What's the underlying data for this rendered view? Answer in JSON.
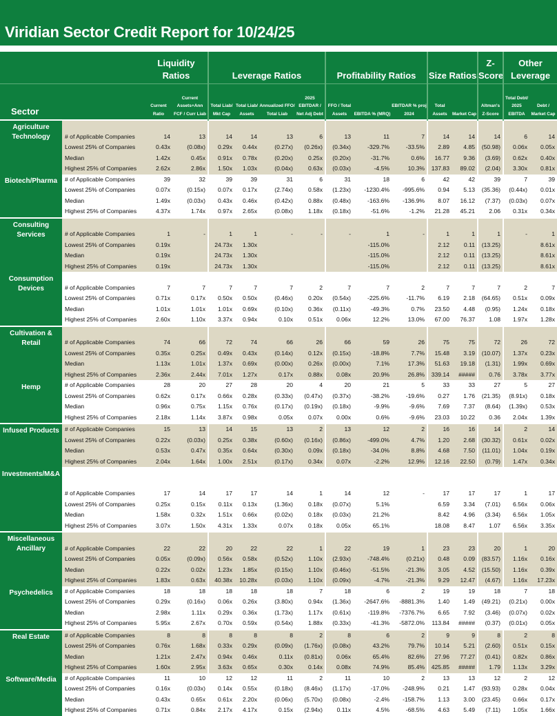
{
  "title": "Viridian Sector Credit Report for 10/24/25",
  "colors": {
    "header_green": "#0e7f3e",
    "band_beige": "#ddd8c4"
  },
  "header": {
    "sector_label": "Sector",
    "groups": [
      "Liquidity Ratios",
      "Leverage Ratios",
      "Profitability Ratios",
      "Size Ratios",
      "Z-Score",
      "Other Leverage"
    ],
    "columns": [
      "Current Ratio",
      "Current Assets+Ann FCF / Curr Liab",
      "Total Liab/ Mkt Cap",
      "Total Liab/ Assets",
      "Annualized FFO/ Total Liab",
      "2025 EBITDAR / Net Adj Debt",
      "FFO / Total Assets",
      "EBITDA % (MRQ)",
      "EBITDAR % proj 2024",
      "Total Assets",
      "Market Cap",
      "Altman's Z-Score",
      "Total Debt/ 2025 EBITDA",
      "Debt / Market Cap"
    ]
  },
  "sectors": [
    {
      "name": "Agriculture Technology",
      "rows": [
        {
          "label": "# of Applicable Companies",
          "values": [
            "14",
            "13",
            "14",
            "14",
            "13",
            "6",
            "13",
            "11",
            "7",
            "14",
            "14",
            "14",
            "6",
            "14"
          ]
        },
        {
          "label": "Lowest 25% of Companies",
          "values": [
            "0.43x",
            "(0.08x)",
            "0.29x",
            "0.44x",
            "(0.27x)",
            "(0.26x)",
            "(0.34x)",
            "-329.7%",
            "-33.5%",
            "2.89",
            "4.85",
            "(50.98)",
            "0.06x",
            "0.05x"
          ]
        },
        {
          "label": "Median",
          "values": [
            "1.42x",
            "0.45x",
            "0.91x",
            "0.78x",
            "(0.20x)",
            "0.25x",
            "(0.20x)",
            "-31.7%",
            "0.6%",
            "16.77",
            "9.36",
            "(3.69)",
            "0.62x",
            "0.40x"
          ]
        },
        {
          "label": "Highest 25% of Companies",
          "values": [
            "2.62x",
            "2.86x",
            "1.50x",
            "1.03x",
            "(0.04x)",
            "0.63x",
            "(0.03x)",
            "-4.5%",
            "10.3%",
            "137.83",
            "89.02",
            "(2.04)",
            "3.30x",
            "0.81x"
          ]
        }
      ]
    },
    {
      "name": "Biotech/Pharma",
      "rows": [
        {
          "label": "# of Applicable Companies",
          "values": [
            "39",
            "32",
            "39",
            "39",
            "31",
            "6",
            "31",
            "18",
            "6",
            "42",
            "42",
            "39",
            "7",
            "39"
          ]
        },
        {
          "label": "Lowest 25% of Companies",
          "values": [
            "0.07x",
            "(0.15x)",
            "0.07x",
            "0.17x",
            "(2.74x)",
            "0.58x",
            "(1.23x)",
            "-1230.4%",
            "-995.6%",
            "0.94",
            "5.13",
            "(35.36)",
            "(0.44x)",
            "0.01x"
          ]
        },
        {
          "label": "Median",
          "values": [
            "1.49x",
            "(0.03x)",
            "0.43x",
            "0.46x",
            "(0.42x)",
            "0.88x",
            "(0.48x)",
            "-163.6%",
            "-136.9%",
            "8.07",
            "16.12",
            "(7.37)",
            "(0.03x)",
            "0.07x"
          ]
        },
        {
          "label": "Highest 25% of Companies",
          "values": [
            "4.37x",
            "1.74x",
            "0.97x",
            "2.65x",
            "(0.08x)",
            "1.18x",
            "(0.18x)",
            "-51.6%",
            "-1.2%",
            "21.28",
            "45.21",
            "2.06",
            "0.31x",
            "0.34x"
          ]
        }
      ]
    },
    {
      "name": "Consulting Services",
      "rows": [
        {
          "label": "# of Applicable Companies",
          "values": [
            "1",
            "-",
            "1",
            "1",
            "-",
            "-",
            "-",
            "1",
            "-",
            "1",
            "1",
            "1",
            "-",
            "1"
          ]
        },
        {
          "label": "Lowest 25% of Companies",
          "values": [
            "0.19x",
            "",
            "24.73x",
            "1.30x",
            "",
            "",
            "",
            "-115.0%",
            "",
            "2.12",
            "0.11",
            "(13.25)",
            "",
            "8.61x"
          ]
        },
        {
          "label": "Median",
          "values": [
            "0.19x",
            "",
            "24.73x",
            "1.30x",
            "",
            "",
            "",
            "-115.0%",
            "",
            "2.12",
            "0.11",
            "(13.25)",
            "",
            "8.61x"
          ]
        },
        {
          "label": "Highest 25% of Companies",
          "values": [
            "0.19x",
            "",
            "24.73x",
            "1.30x",
            "",
            "",
            "",
            "-115.0%",
            "",
            "2.12",
            "0.11",
            "(13.25)",
            "",
            "8.61x"
          ]
        }
      ]
    },
    {
      "name": "Consumption Devices",
      "rows": [
        {
          "label": "# of Applicable Companies",
          "values": [
            "7",
            "7",
            "7",
            "7",
            "7",
            "2",
            "7",
            "7",
            "2",
            "7",
            "7",
            "7",
            "2",
            "7"
          ]
        },
        {
          "label": "Lowest 25% of Companies",
          "values": [
            "0.71x",
            "0.17x",
            "0.50x",
            "0.50x",
            "(0.46x)",
            "0.20x",
            "(0.54x)",
            "-225.6%",
            "-11.7%",
            "6.19",
            "2.18",
            "(64.65)",
            "0.51x",
            "0.09x"
          ]
        },
        {
          "label": "Median",
          "values": [
            "1.01x",
            "1.01x",
            "1.01x",
            "0.69x",
            "(0.10x)",
            "0.36x",
            "(0.11x)",
            "-49.3%",
            "0.7%",
            "23.50",
            "4.48",
            "(0.95)",
            "1.24x",
            "0.18x"
          ]
        },
        {
          "label": "Highest 25% of Companies",
          "values": [
            "2.60x",
            "1.10x",
            "3.37x",
            "0.94x",
            "0.10x",
            "0.51x",
            "0.06x",
            "12.2%",
            "13.0%",
            "67.00",
            "76.37",
            "1.08",
            "1.97x",
            "1.28x"
          ]
        }
      ]
    },
    {
      "name": "Cultivation & Retail",
      "rows": [
        {
          "label": "# of Applicable Companies",
          "values": [
            "74",
            "66",
            "72",
            "74",
            "66",
            "26",
            "66",
            "59",
            "26",
            "75",
            "75",
            "72",
            "26",
            "72"
          ]
        },
        {
          "label": "Lowest 25% of Companies",
          "values": [
            "0.35x",
            "0.25x",
            "0.49x",
            "0.43x",
            "(0.14x)",
            "0.12x",
            "(0.15x)",
            "-18.8%",
            "7.7%",
            "15.48",
            "3.19",
            "(10.07)",
            "1.37x",
            "0.23x"
          ]
        },
        {
          "label": "Median",
          "values": [
            "1.13x",
            "1.01x",
            "1.37x",
            "0.69x",
            "(0.00x)",
            "0.26x",
            "(0.00x)",
            "7.1%",
            "17.3%",
            "51.63",
            "19.18",
            "(1.31)",
            "1.99x",
            "0.69x"
          ]
        },
        {
          "label": "Highest 25% of Companies",
          "values": [
            "2.36x",
            "2.44x",
            "7.01x",
            "1.27x",
            "0.17x",
            "0.88x",
            "0.08x",
            "20.9%",
            "26.8%",
            "339.14",
            "#####",
            "0.76",
            "3.78x",
            "3.77x"
          ]
        }
      ]
    },
    {
      "name": "Hemp",
      "rows": [
        {
          "label": "# of Applicable Companies",
          "values": [
            "28",
            "20",
            "27",
            "28",
            "20",
            "4",
            "20",
            "21",
            "5",
            "33",
            "33",
            "27",
            "5",
            "27"
          ]
        },
        {
          "label": "Lowest 25% of Companies",
          "values": [
            "0.62x",
            "0.17x",
            "0.66x",
            "0.28x",
            "(0.33x)",
            "(0.47x)",
            "(0.37x)",
            "-38.2%",
            "-19.6%",
            "0.27",
            "1.76",
            "(21.35)",
            "(8.91x)",
            "0.18x"
          ]
        },
        {
          "label": "Median",
          "values": [
            "0.96x",
            "0.75x",
            "1.15x",
            "0.76x",
            "(0.17x)",
            "(0.19x)",
            "(0.18x)",
            "-9.9%",
            "-9.6%",
            "7.69",
            "7.37",
            "(8.64)",
            "(1.39x)",
            "0.53x"
          ]
        },
        {
          "label": "Highest 25% of Companies",
          "values": [
            "2.18x",
            "1.14x",
            "3.87x",
            "0.98x",
            "0.05x",
            "0.07x",
            "0.00x",
            "0.6%",
            "-9.6%",
            "23.03",
            "10.22",
            "0.36",
            "2.04x",
            "1.39x"
          ]
        }
      ]
    },
    {
      "name": "Infused Products",
      "rows": [
        {
          "label": "# of Applicable Companies",
          "values": [
            "15",
            "13",
            "14",
            "15",
            "13",
            "2",
            "13",
            "12",
            "2",
            "16",
            "16",
            "14",
            "2",
            "14"
          ]
        },
        {
          "label": "Lowest 25% of Companies",
          "values": [
            "0.22x",
            "(0.03x)",
            "0.25x",
            "0.38x",
            "(0.60x)",
            "(0.16x)",
            "(0.86x)",
            "-499.0%",
            "4.7%",
            "1.20",
            "2.68",
            "(30.32)",
            "0.61x",
            "0.02x"
          ]
        },
        {
          "label": "Median",
          "values": [
            "0.53x",
            "0.47x",
            "0.35x",
            "0.64x",
            "(0.30x)",
            "0.09x",
            "(0.18x)",
            "-34.0%",
            "8.8%",
            "4.68",
            "7.50",
            "(11.01)",
            "1.04x",
            "0.19x"
          ]
        },
        {
          "label": "Highest 25% of Companies",
          "values": [
            "2.04x",
            "1.64x",
            "1.00x",
            "2.51x",
            "(0.17x)",
            "0.34x",
            "0.07x",
            "-2.2%",
            "12.9%",
            "12.16",
            "22.50",
            "(0.79)",
            "1.47x",
            "0.34x"
          ]
        }
      ]
    },
    {
      "name": "Investments/M&A",
      "rows": [
        {
          "label": "# of Applicable Companies",
          "values": [
            "17",
            "14",
            "17",
            "17",
            "14",
            "1",
            "14",
            "12",
            "-",
            "17",
            "17",
            "17",
            "1",
            "17"
          ]
        },
        {
          "label": "Lowest 25% of Companies",
          "values": [
            "0.25x",
            "0.15x",
            "0.11x",
            "0.13x",
            "(1.36x)",
            "0.18x",
            "(0.07x)",
            "5.1%",
            "",
            "6.59",
            "3.34",
            "(7.01)",
            "6.56x",
            "0.06x"
          ]
        },
        {
          "label": "Median",
          "values": [
            "1.58x",
            "0.32x",
            "1.51x",
            "0.66x",
            "(0.02x)",
            "0.18x",
            "(0.03x)",
            "21.2%",
            "",
            "8.42",
            "4.96",
            "(3.34)",
            "6.56x",
            "1.05x"
          ]
        },
        {
          "label": "Highest 25% of Companies",
          "values": [
            "3.07x",
            "1.50x",
            "4.31x",
            "1.33x",
            "0.07x",
            "0.18x",
            "0.05x",
            "65.1%",
            "",
            "18.08",
            "8.47",
            "1.07",
            "6.56x",
            "3.35x"
          ]
        }
      ]
    },
    {
      "name": "Miscellaneous Ancillary",
      "rows": [
        {
          "label": "# of Applicable Companies",
          "values": [
            "22",
            "22",
            "20",
            "22",
            "22",
            "1",
            "22",
            "19",
            "1",
            "23",
            "23",
            "20",
            "1",
            "20"
          ]
        },
        {
          "label": "Lowest 25% of Companies",
          "values": [
            "0.05x",
            "(0.09x)",
            "0.56x",
            "0.58x",
            "(0.52x)",
            "1.10x",
            "(2.93x)",
            "-748.4%",
            "(0.21x)",
            "0.48",
            "0.09",
            "(83.57)",
            "1.16x",
            "0.16x"
          ]
        },
        {
          "label": "Median",
          "values": [
            "0.22x",
            "0.02x",
            "1.23x",
            "1.85x",
            "(0.15x)",
            "1.10x",
            "(0.46x)",
            "-51.5%",
            "-21.3%",
            "3.05",
            "4.52",
            "(15.50)",
            "1.16x",
            "0.39x"
          ]
        },
        {
          "label": "Highest 25% of Companies",
          "values": [
            "1.83x",
            "0.63x",
            "40.38x",
            "10.28x",
            "(0.03x)",
            "1.10x",
            "(0.09x)",
            "-4.7%",
            "-21.3%",
            "9.29",
            "12.47",
            "(4.67)",
            "1.16x",
            "17.23x"
          ]
        }
      ]
    },
    {
      "name": "Psychedelics",
      "rows": [
        {
          "label": "# of Applicable Companies",
          "values": [
            "18",
            "18",
            "18",
            "18",
            "18",
            "7",
            "18",
            "6",
            "2",
            "19",
            "19",
            "18",
            "7",
            "18"
          ]
        },
        {
          "label": "Lowest 25% of Companies",
          "values": [
            "0.29x",
            "(0.16x)",
            "0.06x",
            "0.26x",
            "(3.80x)",
            "0.94x",
            "(1.36x)",
            "-2647.6%",
            "-8881.3%",
            "1.40",
            "1.49",
            "(49.21)",
            "(0.21x)",
            "0.00x"
          ]
        },
        {
          "label": "Median",
          "values": [
            "2.98x",
            "1.11x",
            "0.29x",
            "0.36x",
            "(1.73x)",
            "1.17x",
            "(0.61x)",
            "-119.8%",
            "-7376.7%",
            "6.65",
            "7.92",
            "(3.46)",
            "(0.07x)",
            "0.02x"
          ]
        },
        {
          "label": "Highest 25% of Companies",
          "values": [
            "5.95x",
            "2.67x",
            "0.70x",
            "0.59x",
            "(0.54x)",
            "1.88x",
            "(0.33x)",
            "-41.3%",
            "-5872.0%",
            "113.84",
            "#####",
            "(0.37)",
            "(0.01x)",
            "0.05x"
          ]
        }
      ]
    },
    {
      "name": "Real Estate",
      "rows": [
        {
          "label": "# of Applicable Companies",
          "values": [
            "8",
            "8",
            "8",
            "8",
            "8",
            "2",
            "8",
            "6",
            "2",
            "9",
            "9",
            "8",
            "2",
            "8"
          ]
        },
        {
          "label": "Lowest 25% of Companies",
          "values": [
            "0.76x",
            "1.68x",
            "0.33x",
            "0.29x",
            "(0.09x)",
            "(1.76x)",
            "(0.08x)",
            "43.2%",
            "79.7%",
            "10.14",
            "5.21",
            "(2.60)",
            "0.51x",
            "0.15x"
          ]
        },
        {
          "label": "Median",
          "values": [
            "1.21x",
            "2.47x",
            "0.94x",
            "0.46x",
            "0.11x",
            "(0.81x)",
            "0.06x",
            "65.4%",
            "82.6%",
            "27.96",
            "77.27",
            "(0.41)",
            "0.82x",
            "0.86x"
          ]
        },
        {
          "label": "Highest 25% of Companies",
          "values": [
            "1.60x",
            "2.95x",
            "3.63x",
            "0.65x",
            "0.30x",
            "0.14x",
            "0.08x",
            "74.9%",
            "85.4%",
            "425.85",
            "#####",
            "1.79",
            "1.13x",
            "3.29x"
          ]
        }
      ]
    },
    {
      "name": "Software/Media",
      "rows": [
        {
          "label": "# of Applicable Companies",
          "values": [
            "11",
            "10",
            "12",
            "12",
            "11",
            "2",
            "11",
            "10",
            "2",
            "13",
            "13",
            "12",
            "2",
            "12"
          ]
        },
        {
          "label": "Lowest 25% of Companies",
          "values": [
            "0.16x",
            "(0.03x)",
            "0.14x",
            "0.55x",
            "(0.18x)",
            "(8.46x)",
            "(1.17x)",
            "-17.0%",
            "-248.9%",
            "0.21",
            "1.47",
            "(93.93)",
            "0.28x",
            "0.04x"
          ]
        },
        {
          "label": "Median",
          "values": [
            "0.43x",
            "0.65x",
            "0.61x",
            "2.20x",
            "(0.06x)",
            "(5.70x)",
            "(0.08x)",
            "-2.4%",
            "-158.7%",
            "1.13",
            "3.00",
            "(23.45)",
            "0.66x",
            "0.17x"
          ]
        },
        {
          "label": "Highest 25% of Companies",
          "values": [
            "0.71x",
            "0.84x",
            "2.17x",
            "4.17x",
            "0.15x",
            "(2.94x)",
            "0.11x",
            "4.5%",
            "-68.5%",
            "4.63",
            "5.49",
            "(7.11)",
            "1.05x",
            "1.66x"
          ]
        }
      ]
    }
  ]
}
